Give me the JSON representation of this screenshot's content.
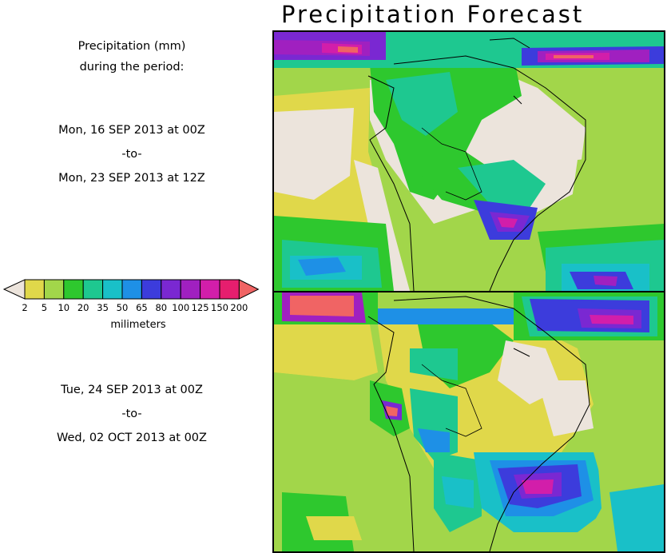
{
  "title": "Precipitation Forecast",
  "header": {
    "line1": "Precipitation (mm)",
    "line2": "during the period:"
  },
  "period1": {
    "start": "Mon, 16 SEP 2013 at 00Z",
    "sep": "-to-",
    "end": "Mon, 23 SEP 2013 at 12Z"
  },
  "period2": {
    "start": "Tue, 24 SEP 2013 at 00Z",
    "sep": "-to-",
    "end": "Wed, 02 OCT 2013 at 00Z"
  },
  "colorbar": {
    "unit": "milimeters",
    "levels": [
      "2",
      "5",
      "10",
      "20",
      "35",
      "50",
      "65",
      "80",
      "100",
      "125",
      "150",
      "200"
    ],
    "colors": [
      "#e0d84a",
      "#a2d64a",
      "#2ec82e",
      "#1ec890",
      "#19c0c8",
      "#1e90e6",
      "#3c3cdc",
      "#7a28d2",
      "#a020c0",
      "#d21eaa",
      "#e61e6e",
      "#f06464"
    ],
    "under_color": "#ece4dc",
    "over_color": "#f06464"
  },
  "colors": {
    "land_dry": "#ece4dc",
    "ocean_low": "#e0d84a",
    "border": "#000000"
  }
}
